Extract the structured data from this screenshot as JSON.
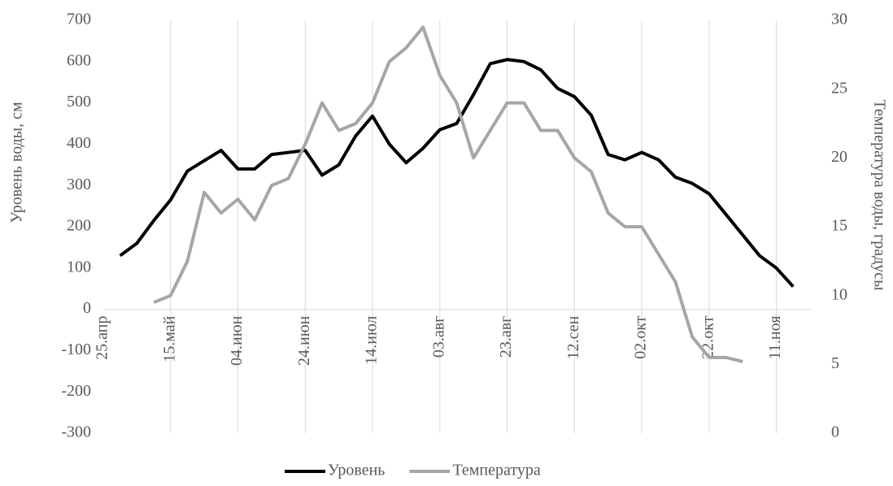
{
  "chart_data": {
    "type": "line",
    "categories": [
      "25.апр",
      null,
      null,
      null,
      "15.май",
      null,
      null,
      null,
      "04.июн",
      null,
      null,
      null,
      "24.июн",
      null,
      null,
      null,
      "14.июл",
      null,
      null,
      null,
      "03.авг",
      null,
      null,
      null,
      "23.авг",
      null,
      null,
      null,
      "12.сен",
      null,
      null,
      null,
      "02.окт",
      null,
      null,
      null,
      "22.окт",
      null,
      null,
      null,
      "11.ноя",
      null
    ],
    "series": [
      {
        "name": "Уровень",
        "color": "#000000",
        "axis": "y",
        "values": [
          null,
          130,
          160,
          215,
          265,
          335,
          360,
          385,
          340,
          340,
          375,
          380,
          385,
          325,
          350,
          420,
          468,
          400,
          355,
          390,
          435,
          450,
          520,
          595,
          605,
          600,
          580,
          535,
          515,
          470,
          375,
          362,
          380,
          362,
          320,
          305,
          280,
          230,
          180,
          130,
          100,
          55
        ]
      },
      {
        "name": "Температура",
        "color": "#a6a6a6",
        "axis": "y2",
        "values": [
          null,
          null,
          null,
          9.5,
          10,
          12.5,
          17.5,
          16,
          17,
          15.5,
          18,
          18.5,
          21,
          24,
          22,
          22.5,
          24,
          27,
          28,
          29.5,
          26,
          24,
          20,
          22,
          24,
          24,
          22,
          22,
          20,
          19,
          16,
          15,
          15,
          13,
          11,
          7,
          5.5,
          5.5,
          5.2,
          null,
          null,
          null
        ]
      }
    ],
    "ylabel": "Уровень воды, см",
    "y2label": "Температура воды, градусы",
    "ylim": [
      -300,
      700
    ],
    "yticks": [
      -300,
      -200,
      -100,
      0,
      100,
      200,
      300,
      400,
      500,
      600,
      700
    ],
    "y2lim": [
      0,
      30
    ],
    "y2ticks": [
      0,
      5,
      10,
      15,
      20,
      25,
      30
    ],
    "grid": true,
    "legend": "bottom"
  }
}
